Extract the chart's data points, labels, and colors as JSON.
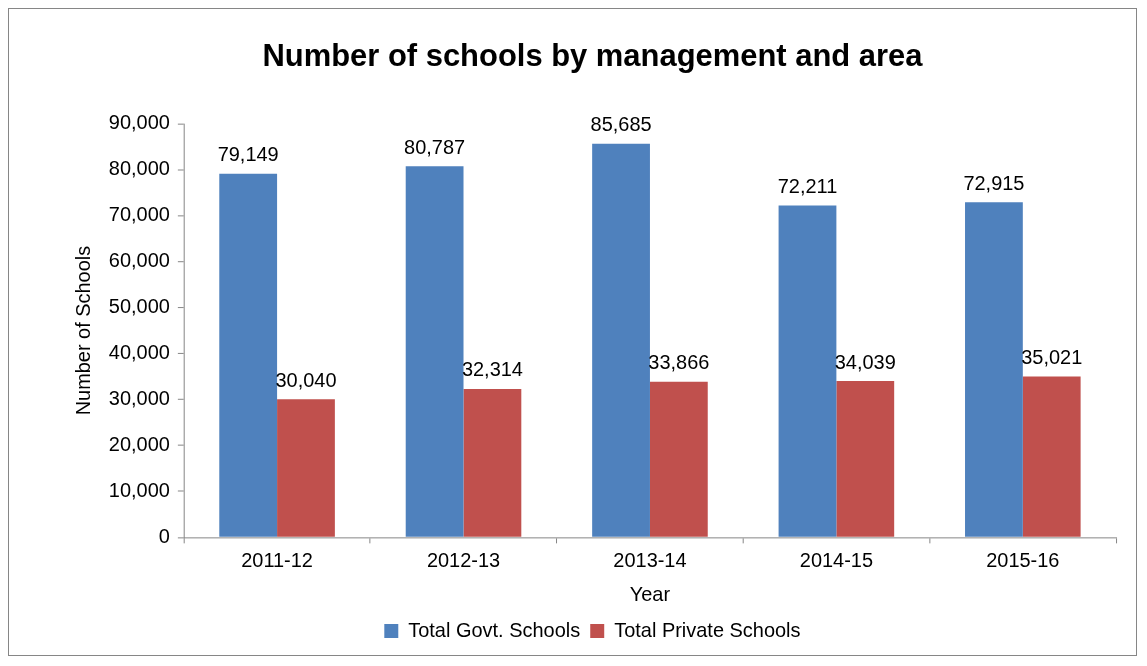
{
  "chart_data": {
    "type": "bar",
    "title": "Number of schools by management and area",
    "xlabel": "Year",
    "ylabel": "Number of Schools",
    "categories": [
      "2011-12",
      "2012-13",
      "2013-14",
      "2014-15",
      "2015-16"
    ],
    "series": [
      {
        "name": "Total Govt. Schools",
        "color": "#4f81bd",
        "values": [
          79149,
          80787,
          85685,
          72211,
          72915
        ],
        "value_labels": [
          "79,149",
          "80,787",
          "85,685",
          "72,211",
          "72,915"
        ]
      },
      {
        "name": "Total Private Schools",
        "color": "#c0504d",
        "values": [
          30040,
          32314,
          33866,
          34039,
          35021
        ],
        "value_labels": [
          "30,040",
          "32,314",
          "33,866",
          "34,039",
          "35,021"
        ]
      }
    ],
    "ylim": [
      0,
      90000
    ],
    "yticks": [
      0,
      {
        "value": 10000,
        "label": "10,000"
      },
      {
        "value": 20000,
        "label": "20,000"
      },
      {
        "value": 30000,
        "label": "30,000"
      },
      {
        "value": 40000,
        "label": "40,000"
      },
      {
        "value": 50000,
        "label": "50,000"
      },
      {
        "value": 60000,
        "label": "60,000"
      },
      {
        "value": 70000,
        "label": "70,000"
      },
      {
        "value": 80000,
        "label": "80,000"
      },
      {
        "value": 90000,
        "label": "90,000"
      }
    ],
    "grid": false,
    "legend": "bottom"
  }
}
